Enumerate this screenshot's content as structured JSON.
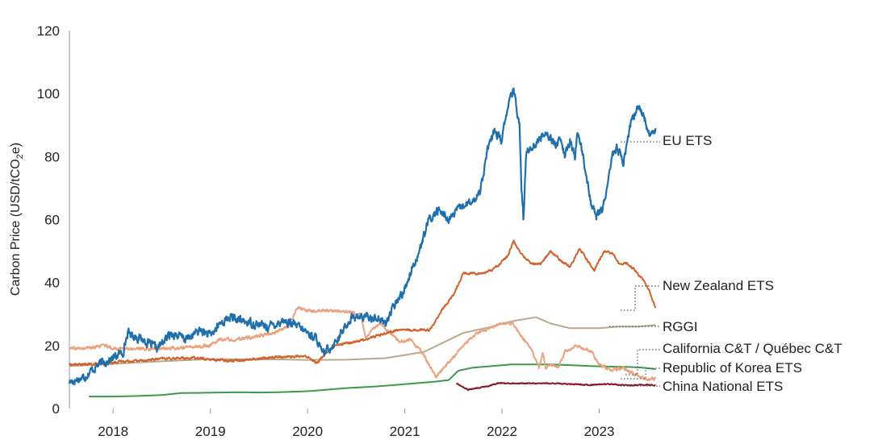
{
  "chart_data": {
    "type": "line",
    "title": "",
    "xlabel": "",
    "ylabel": "Carbon Price (USD/tCO2e)",
    "ylabel_parts": [
      "Carbon Price (USD/tCO",
      "2",
      "e)"
    ],
    "ylim": [
      0,
      120
    ],
    "yticks": [
      0,
      20,
      40,
      60,
      80,
      100,
      120
    ],
    "xlim": [
      2017.55,
      2023.22
    ],
    "xticks": [
      {
        "label": "2018",
        "x": 2018.0
      },
      {
        "label": "2019",
        "x": 2019.0
      },
      {
        "label": "2020",
        "x": 2020.0
      },
      {
        "label": "2021",
        "x": 2021.0
      },
      {
        "label": "2022",
        "x": 2022.0
      },
      {
        "label": "2023",
        "x": 2023.0
      }
    ],
    "grid": false,
    "legend_placement": "right, labels at line ends",
    "series": [
      {
        "name": "EU ETS",
        "color": "#1f6fad",
        "noise": 2.2,
        "points": [
          [
            2017.55,
            8.5
          ],
          [
            2017.7,
            10
          ],
          [
            2017.85,
            14
          ],
          [
            2018.0,
            16
          ],
          [
            2018.1,
            18
          ],
          [
            2018.15,
            24
          ],
          [
            2018.3,
            22
          ],
          [
            2018.45,
            19
          ],
          [
            2018.6,
            24
          ],
          [
            2018.75,
            22
          ],
          [
            2018.9,
            25
          ],
          [
            2019.0,
            23
          ],
          [
            2019.1,
            27
          ],
          [
            2019.2,
            29
          ],
          [
            2019.3,
            28
          ],
          [
            2019.45,
            27
          ],
          [
            2019.6,
            26
          ],
          [
            2019.75,
            28
          ],
          [
            2019.9,
            26
          ],
          [
            2020.0,
            24
          ],
          [
            2020.1,
            22
          ],
          [
            2020.15,
            17
          ],
          [
            2020.25,
            20
          ],
          [
            2020.35,
            24
          ],
          [
            2020.45,
            29
          ],
          [
            2020.55,
            29
          ],
          [
            2020.7,
            29
          ],
          [
            2020.8,
            27
          ],
          [
            2020.9,
            33
          ],
          [
            2021.0,
            38
          ],
          [
            2021.08,
            45
          ],
          [
            2021.15,
            50
          ],
          [
            2021.25,
            60
          ],
          [
            2021.35,
            63
          ],
          [
            2021.45,
            60
          ],
          [
            2021.55,
            63
          ],
          [
            2021.62,
            65
          ],
          [
            2021.7,
            65
          ],
          [
            2021.78,
            70
          ],
          [
            2021.85,
            82
          ],
          [
            2021.92,
            88
          ],
          [
            2022.0,
            85
          ],
          [
            2022.05,
            95
          ],
          [
            2022.12,
            101
          ],
          [
            2022.18,
            90
          ],
          [
            2022.2,
            70
          ],
          [
            2022.22,
            60
          ],
          [
            2022.25,
            82
          ],
          [
            2022.35,
            84
          ],
          [
            2022.45,
            88
          ],
          [
            2022.55,
            84
          ],
          [
            2022.6,
            85
          ],
          [
            2022.65,
            80
          ],
          [
            2022.7,
            85
          ],
          [
            2022.75,
            80
          ],
          [
            2022.78,
            88
          ],
          [
            2022.82,
            82
          ],
          [
            2022.88,
            72
          ],
          [
            2022.92,
            65
          ],
          [
            2022.97,
            61
          ],
          [
            2023.03,
            63
          ],
          [
            2023.08,
            70
          ],
          [
            2023.13,
            80
          ],
          [
            2023.18,
            83
          ],
          [
            2023.25,
            78
          ],
          [
            2023.32,
            90
          ],
          [
            2023.4,
            96
          ],
          [
            2023.47,
            92
          ],
          [
            2023.52,
            86
          ],
          [
            2023.58,
            89
          ]
        ]
      },
      {
        "name": "New Zealand ETS",
        "color": "#d0622c",
        "noise": 0.6,
        "points": [
          [
            2017.55,
            14
          ],
          [
            2017.7,
            14
          ],
          [
            2017.9,
            14.3
          ],
          [
            2018.1,
            15
          ],
          [
            2018.3,
            15.3
          ],
          [
            2018.5,
            15.8
          ],
          [
            2018.7,
            16
          ],
          [
            2018.9,
            16
          ],
          [
            2019.0,
            15.5
          ],
          [
            2019.2,
            15.3
          ],
          [
            2019.4,
            15.5
          ],
          [
            2019.6,
            16.2
          ],
          [
            2019.8,
            16.5
          ],
          [
            2020.0,
            16.5
          ],
          [
            2020.1,
            14.5
          ],
          [
            2020.2,
            18
          ],
          [
            2020.3,
            20
          ],
          [
            2020.45,
            21
          ],
          [
            2020.6,
            22
          ],
          [
            2020.8,
            24
          ],
          [
            2020.95,
            25
          ],
          [
            2021.1,
            25
          ],
          [
            2021.25,
            25
          ],
          [
            2021.3,
            27
          ],
          [
            2021.4,
            32
          ],
          [
            2021.45,
            34
          ],
          [
            2021.5,
            36
          ],
          [
            2021.6,
            43
          ],
          [
            2021.8,
            43
          ],
          [
            2021.9,
            44
          ],
          [
            2022.05,
            48
          ],
          [
            2022.12,
            53
          ],
          [
            2022.2,
            49
          ],
          [
            2022.3,
            46
          ],
          [
            2022.4,
            46
          ],
          [
            2022.5,
            50
          ],
          [
            2022.6,
            47
          ],
          [
            2022.7,
            45
          ],
          [
            2022.8,
            51
          ],
          [
            2022.9,
            46
          ],
          [
            2022.95,
            44
          ],
          [
            2023.05,
            50
          ],
          [
            2023.15,
            49
          ],
          [
            2023.2,
            46
          ],
          [
            2023.3,
            46
          ],
          [
            2023.45,
            41
          ],
          [
            2023.52,
            37
          ],
          [
            2023.58,
            32
          ]
        ]
      },
      {
        "name": "RGGI",
        "color": "#b7aa8c",
        "noise": 0,
        "points": [
          [
            2017.55,
            13.5
          ],
          [
            2017.9,
            14
          ],
          [
            2018.3,
            14.7
          ],
          [
            2018.7,
            15.3
          ],
          [
            2019.0,
            15.7
          ],
          [
            2019.3,
            15.6
          ],
          [
            2019.7,
            15.6
          ],
          [
            2020.0,
            15.4
          ],
          [
            2020.4,
            15.5
          ],
          [
            2020.8,
            16
          ],
          [
            2021.0,
            17
          ],
          [
            2021.2,
            18
          ],
          [
            2021.4,
            21
          ],
          [
            2021.6,
            24
          ],
          [
            2021.9,
            26
          ],
          [
            2022.0,
            27
          ],
          [
            2022.15,
            28
          ],
          [
            2022.35,
            29
          ],
          [
            2022.5,
            27
          ],
          [
            2022.7,
            25.5
          ],
          [
            2023.0,
            25.5
          ],
          [
            2023.2,
            26
          ],
          [
            2023.4,
            26
          ],
          [
            2023.58,
            26.5
          ]
        ]
      },
      {
        "name": "California C&T / Québec C&T",
        "color": "#e9a27d",
        "noise": 0.8,
        "points": [
          [
            2017.55,
            19
          ],
          [
            2017.7,
            19
          ],
          [
            2017.9,
            20
          ],
          [
            2018.0,
            19
          ],
          [
            2018.2,
            19
          ],
          [
            2018.5,
            19
          ],
          [
            2018.8,
            19.5
          ],
          [
            2019.0,
            20
          ],
          [
            2019.1,
            22
          ],
          [
            2019.3,
            22
          ],
          [
            2019.5,
            23
          ],
          [
            2019.65,
            24
          ],
          [
            2019.8,
            26
          ],
          [
            2019.9,
            32
          ],
          [
            2020.0,
            31
          ],
          [
            2020.15,
            31
          ],
          [
            2020.3,
            31
          ],
          [
            2020.45,
            30.5
          ],
          [
            2020.55,
            30
          ],
          [
            2020.6,
            22
          ],
          [
            2020.65,
            25
          ],
          [
            2020.75,
            27
          ],
          [
            2020.85,
            24
          ],
          [
            2020.95,
            21
          ],
          [
            2021.05,
            22
          ],
          [
            2021.15,
            19
          ],
          [
            2021.25,
            14
          ],
          [
            2021.32,
            10
          ],
          [
            2021.4,
            13
          ],
          [
            2021.5,
            16
          ],
          [
            2021.6,
            20
          ],
          [
            2021.75,
            24
          ],
          [
            2021.9,
            26
          ],
          [
            2022.0,
            27
          ],
          [
            2022.1,
            27
          ],
          [
            2022.2,
            23
          ],
          [
            2022.3,
            19
          ],
          [
            2022.38,
            13
          ],
          [
            2022.42,
            18
          ],
          [
            2022.45,
            13
          ],
          [
            2022.5,
            14
          ],
          [
            2022.58,
            13
          ],
          [
            2022.65,
            18
          ],
          [
            2022.75,
            20
          ],
          [
            2022.85,
            19
          ],
          [
            2022.92,
            18
          ],
          [
            2023.0,
            14
          ],
          [
            2023.12,
            12
          ],
          [
            2023.25,
            13
          ],
          [
            2023.35,
            11
          ],
          [
            2023.45,
            10
          ],
          [
            2023.52,
            9
          ],
          [
            2023.58,
            9.5
          ]
        ]
      },
      {
        "name": "Republic of Korea ETS",
        "color": "#3a9a4a",
        "noise": 0,
        "points": [
          [
            2017.75,
            3.8
          ],
          [
            2018.0,
            3.8
          ],
          [
            2018.25,
            4
          ],
          [
            2018.5,
            4.3
          ],
          [
            2018.7,
            4.9
          ],
          [
            2018.9,
            5
          ],
          [
            2019.1,
            5.1
          ],
          [
            2019.3,
            5.2
          ],
          [
            2019.5,
            5.1
          ],
          [
            2019.7,
            5.2
          ],
          [
            2020.0,
            5.5
          ],
          [
            2020.2,
            6
          ],
          [
            2020.4,
            6.5
          ],
          [
            2020.7,
            7
          ],
          [
            2020.9,
            7.5
          ],
          [
            2021.1,
            8
          ],
          [
            2021.3,
            8.5
          ],
          [
            2021.45,
            9
          ],
          [
            2021.55,
            12
          ],
          [
            2021.7,
            13
          ],
          [
            2021.9,
            13.5
          ],
          [
            2022.1,
            14
          ],
          [
            2022.3,
            14
          ],
          [
            2022.5,
            14
          ],
          [
            2022.7,
            13.8
          ],
          [
            2022.9,
            13.5
          ],
          [
            2023.1,
            13.3
          ],
          [
            2023.3,
            13.2
          ],
          [
            2023.45,
            13
          ],
          [
            2023.58,
            12.5
          ]
        ]
      },
      {
        "name": "China National ETS",
        "color": "#8a1824",
        "noise": 0.25,
        "points": [
          [
            2021.53,
            8
          ],
          [
            2021.57,
            7.3
          ],
          [
            2021.65,
            6
          ],
          [
            2021.75,
            6.5
          ],
          [
            2021.85,
            7
          ],
          [
            2021.95,
            8
          ],
          [
            2022.1,
            8
          ],
          [
            2022.3,
            8
          ],
          [
            2022.5,
            8
          ],
          [
            2022.7,
            7.8
          ],
          [
            2022.9,
            7.5
          ],
          [
            2023.1,
            7.8
          ],
          [
            2023.3,
            7.3
          ],
          [
            2023.45,
            7.5
          ],
          [
            2023.58,
            7.4
          ]
        ]
      }
    ]
  }
}
